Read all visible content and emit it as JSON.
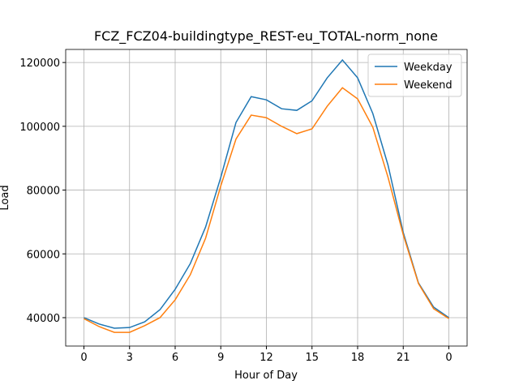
{
  "chart_data": {
    "type": "line",
    "title": "FCZ_FCZ04-buildingtype_REST-eu_TOTAL-norm_none",
    "x_label": "Hour of Day",
    "y_label": "Load",
    "x": [
      0,
      1,
      2,
      3,
      4,
      5,
      6,
      7,
      8,
      9,
      10,
      11,
      12,
      13,
      14,
      15,
      16,
      17,
      18,
      19,
      20,
      21,
      22,
      23,
      24
    ],
    "series": [
      {
        "name": "Weekday",
        "color": "#1f77b4",
        "values": [
          40000,
          38000,
          36700,
          36900,
          38700,
          42500,
          48900,
          57000,
          68400,
          84000,
          101200,
          109300,
          108300,
          105500,
          105000,
          108000,
          115200,
          120800,
          115200,
          104000,
          87800,
          66700,
          50900,
          43300,
          40000
        ]
      },
      {
        "name": "Weekend",
        "color": "#ff7f0e",
        "values": [
          39700,
          37200,
          35400,
          35400,
          37500,
          40000,
          45600,
          53500,
          64900,
          81300,
          96000,
          103500,
          102700,
          100000,
          97700,
          99200,
          106300,
          112100,
          108600,
          99700,
          84000,
          66000,
          50700,
          42800,
          39700
        ]
      }
    ],
    "xlim": [
      -1.2,
      25.2
    ],
    "ylim": [
      31100,
      124100
    ],
    "xticks": [
      0,
      3,
      6,
      9,
      12,
      15,
      18,
      21,
      {
        "value": 24,
        "label": "0"
      }
    ],
    "yticks": [
      40000,
      60000,
      80000,
      100000,
      120000
    ],
    "grid": true,
    "legend": "upper right"
  }
}
